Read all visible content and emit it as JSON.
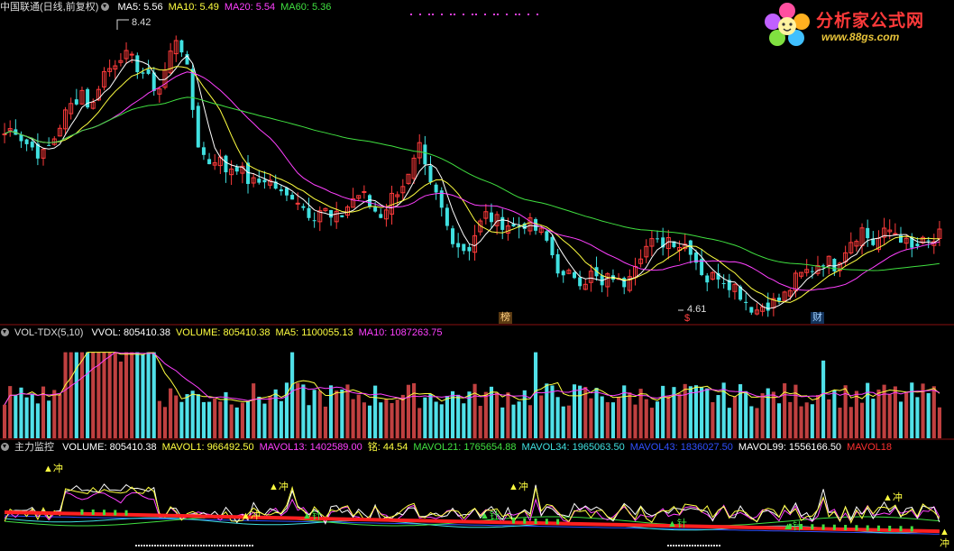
{
  "main_panel": {
    "stock": "中国联通(日线,前复权)",
    "indicators": [
      {
        "label": "MA5: 5.56",
        "color": "#ffffff"
      },
      {
        "label": "MA10: 5.49",
        "color": "#ffff40"
      },
      {
        "label": "MA20: 5.54",
        "color": "#ff40ff"
      },
      {
        "label": "MA60: 5.36",
        "color": "#40e040"
      }
    ],
    "high_label": "8.42",
    "low_label": "4.61",
    "markers": [
      "榜",
      "$",
      "财"
    ]
  },
  "volume_panel": {
    "name": "VOL-TDX(5,10)",
    "indicators": [
      {
        "label": "VVOL: 805410.38",
        "color": "#ffffff"
      },
      {
        "label": "VOLUME: 805410.38",
        "color": "#ffff40"
      },
      {
        "label": "MA5: 1100055.13",
        "color": "#ffff40"
      },
      {
        "label": "MA10: 1087263.75",
        "color": "#ff40ff"
      }
    ]
  },
  "flow_panel": {
    "name": "主力监控",
    "indicators": [
      {
        "label": "VOLUME: 805410.38",
        "color": "#ffffff"
      },
      {
        "label": "MAVOL1: 966492.50",
        "color": "#ffff40"
      },
      {
        "label": "MAVOL13: 1402589.00",
        "color": "#ff40ff"
      },
      {
        "label": "铭: 44.54",
        "color": "#ffff40"
      },
      {
        "label": "MAVOL21: 1765654.88",
        "color": "#40e040"
      },
      {
        "label": "MAVOL34: 1965063.50",
        "color": "#40e0e0"
      },
      {
        "label": "MAVOL43: 1836027.50",
        "color": "#3050ff"
      },
      {
        "label": "MAVOL99: 1556166.50",
        "color": "#ffffff"
      },
      {
        "label": "MAVOL18",
        "color": "#ff3030"
      }
    ],
    "signal_label": "冲",
    "signal_small": "针"
  },
  "logo": {
    "text": "分析家公式网",
    "url": "www.88gs.com"
  },
  "chart_data": {
    "type": "candlestick",
    "series_close": [
      7.0,
      7.1,
      6.9,
      6.8,
      6.7,
      6.9,
      7.2,
      7.4,
      7.6,
      7.3,
      7.8,
      7.9,
      8.1,
      8.0,
      7.9,
      7.7,
      7.6,
      8.0,
      8.4,
      7.8,
      6.9,
      6.6,
      6.7,
      6.5,
      6.6,
      6.4,
      6.3,
      6.4,
      6.3,
      6.1,
      6.2,
      6.0,
      5.9,
      6.0,
      5.8,
      5.9,
      6.1,
      6.2,
      6.0,
      5.9,
      6.1,
      6.3,
      6.4,
      6.8,
      6.3,
      6.1,
      5.7,
      5.5,
      5.4,
      5.7,
      5.9,
      5.8,
      5.8,
      5.7,
      5.8,
      5.7,
      5.6,
      5.3,
      5.0,
      5.1,
      5.0,
      5.1,
      4.9,
      5.1,
      4.9,
      5.2,
      5.4,
      5.5,
      5.5,
      5.6,
      5.5,
      5.5,
      5.2,
      5.0,
      5.1,
      5.0,
      4.9,
      4.7,
      4.6,
      4.7,
      4.7,
      4.8,
      5.0,
      5.1,
      5.2,
      5.3,
      5.2,
      5.4,
      5.6,
      5.7,
      5.5,
      5.6,
      5.7,
      5.6,
      5.4,
      5.5,
      5.5,
      5.6
    ],
    "y_range": [
      4.5,
      8.6
    ],
    "high": 8.42,
    "low": 4.61
  }
}
